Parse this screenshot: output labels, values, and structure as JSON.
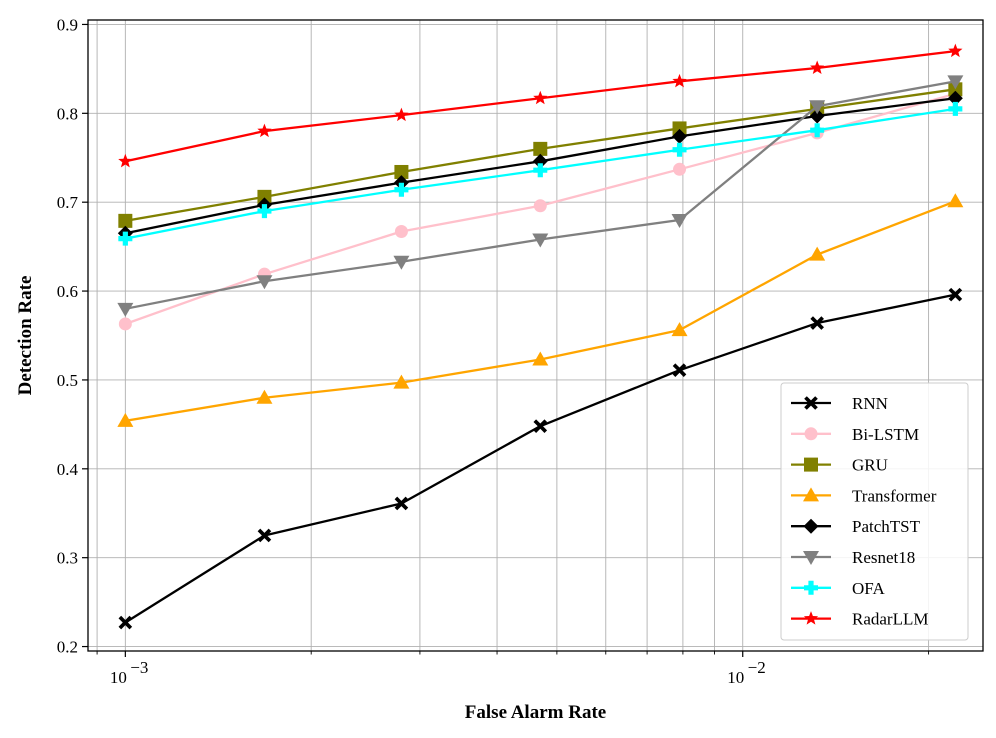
{
  "chart_data": {
    "type": "line",
    "xscale": "log",
    "xlabel": "False Alarm Rate",
    "ylabel": "Detection Rate",
    "xlim": [
      0.00087,
      0.0245
    ],
    "ylim": [
      0.195,
      0.905
    ],
    "grid": "major and minor (x)",
    "legend_position": "lower-right",
    "y_ticks": [
      {
        "value": 0.2,
        "label": "0.2"
      },
      {
        "value": 0.3,
        "label": "0.3"
      },
      {
        "value": 0.4,
        "label": "0.4"
      },
      {
        "value": 0.5,
        "label": "0.5"
      },
      {
        "value": 0.6,
        "label": "0.6"
      },
      {
        "value": 0.7,
        "label": "0.7"
      },
      {
        "value": 0.8,
        "label": "0.8"
      },
      {
        "value": 0.9,
        "label": "0.9"
      }
    ],
    "x_ticks": [
      {
        "value": 0.001,
        "base": "10",
        "exp": "−3"
      },
      {
        "value": 0.01,
        "base": "10",
        "exp": "−2"
      }
    ],
    "x": [
      0.001,
      0.00168,
      0.0028,
      0.0047,
      0.0079,
      0.0132,
      0.0221
    ],
    "series": [
      {
        "name": "RNN",
        "color": "#000000",
        "marker": "x",
        "values": [
          0.227,
          0.325,
          0.361,
          0.448,
          0.511,
          0.564,
          0.596
        ]
      },
      {
        "name": "Bi-LSTM",
        "color": "#ffc0cb",
        "marker": "o",
        "values": [
          0.563,
          0.619,
          0.667,
          0.696,
          0.737,
          0.778,
          0.822
        ]
      },
      {
        "name": "GRU",
        "color": "#808000",
        "marker": "s",
        "values": [
          0.679,
          0.706,
          0.734,
          0.76,
          0.783,
          0.805,
          0.827
        ]
      },
      {
        "name": "Transformer",
        "color": "#ffa500",
        "marker": "^",
        "values": [
          0.454,
          0.48,
          0.497,
          0.523,
          0.556,
          0.641,
          0.701
        ]
      },
      {
        "name": "PatchTST",
        "color": "#000000",
        "marker": "D",
        "values": [
          0.665,
          0.697,
          0.722,
          0.746,
          0.774,
          0.797,
          0.817
        ]
      },
      {
        "name": "Resnet18",
        "color": "#808080",
        "marker": "v",
        "values": [
          0.58,
          0.611,
          0.633,
          0.658,
          0.68,
          0.808,
          0.836
        ]
      },
      {
        "name": "OFA",
        "color": "#00ffff",
        "marker": "P",
        "values": [
          0.659,
          0.69,
          0.714,
          0.736,
          0.759,
          0.781,
          0.805
        ]
      },
      {
        "name": "RadarLLM",
        "color": "#ff0000",
        "marker": "*",
        "values": [
          0.746,
          0.78,
          0.798,
          0.817,
          0.836,
          0.851,
          0.87
        ]
      }
    ]
  }
}
